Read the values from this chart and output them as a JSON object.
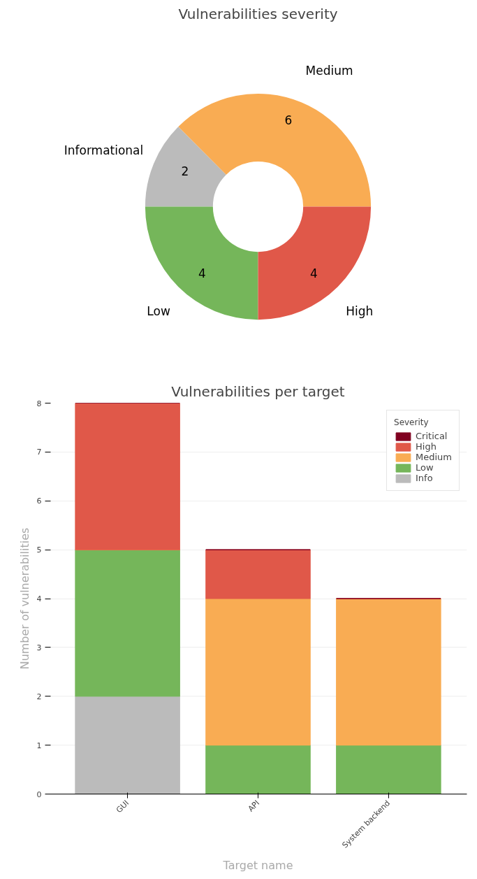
{
  "chart_data": [
    {
      "type": "donut",
      "title": "Vulnerabilities severity",
      "categories": [
        "Medium",
        "Informational",
        "Low",
        "High"
      ],
      "values": [
        6,
        2,
        4,
        4
      ],
      "colors": [
        "#f9ac53",
        "#bbbbbb",
        "#75b65a",
        "#e05849"
      ],
      "data_labels": true
    },
    {
      "type": "bar",
      "title": "Vulnerabilities per target",
      "categories": [
        "GUI",
        "API",
        "System backend"
      ],
      "stacked": true,
      "series": [
        {
          "name": "Info",
          "color": "#bbbbbb",
          "values": [
            2,
            0,
            0
          ]
        },
        {
          "name": "Low",
          "color": "#75b65a",
          "values": [
            3,
            1,
            1
          ]
        },
        {
          "name": "Medium",
          "color": "#f9ac53",
          "values": [
            0,
            3,
            3
          ]
        },
        {
          "name": "High",
          "color": "#e05849",
          "values": [
            3,
            1,
            0
          ]
        },
        {
          "name": "Critical",
          "color": "#800020",
          "values": [
            0,
            0,
            0
          ]
        }
      ],
      "ylim": [
        0,
        8
      ],
      "yticks": [
        0,
        1,
        2,
        3,
        4,
        5,
        6,
        7,
        8
      ],
      "xlabel": "Target name",
      "ylabel": "Number of vulnerabilities",
      "grid": "y",
      "legend": "top right",
      "legend_title": "Severity"
    }
  ]
}
